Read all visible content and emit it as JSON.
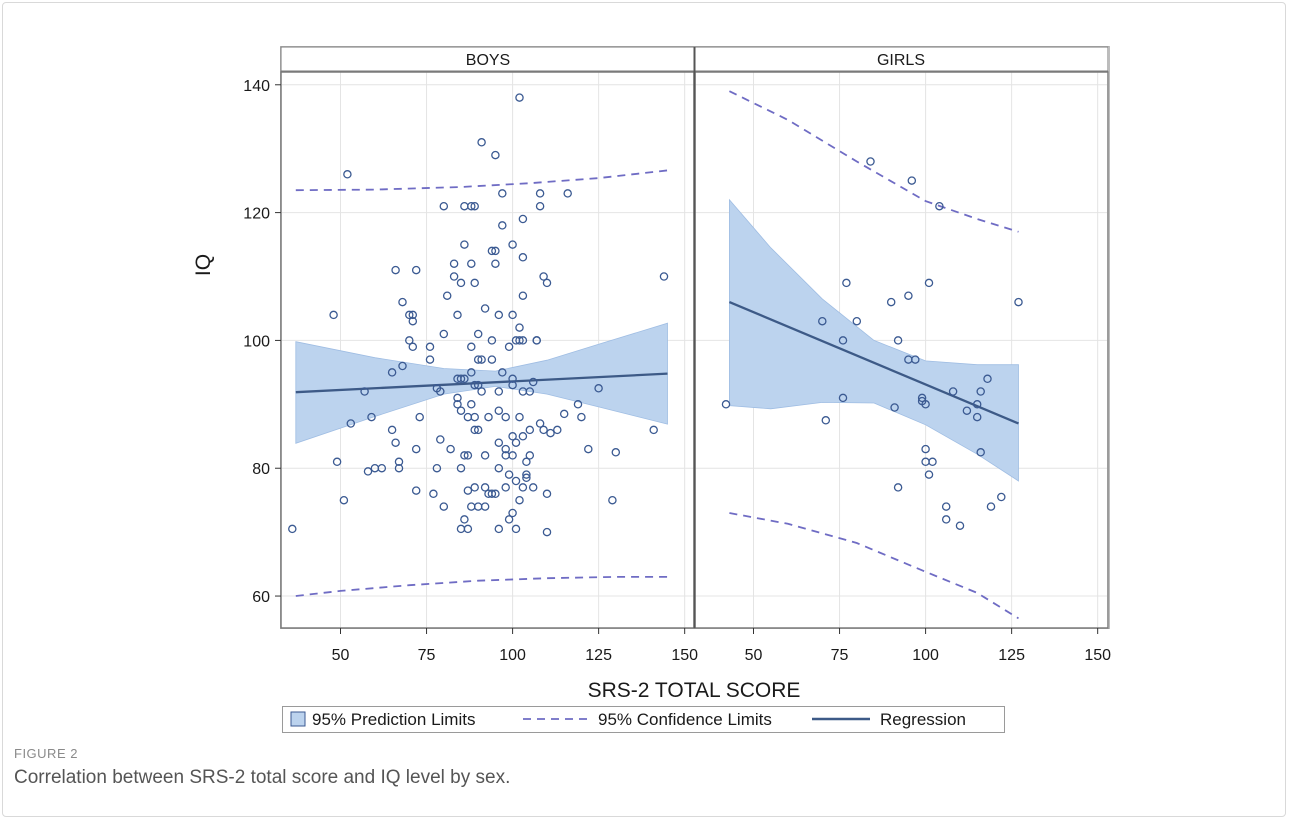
{
  "figure": {
    "label": "FIGURE 2",
    "caption": "Correlation between SRS-2 total score and IQ level by sex."
  },
  "chart_data": {
    "type": "scatter",
    "xlabel": "SRS-2 TOTAL SCORE",
    "ylabel": "IQ",
    "xlim": [
      33,
      153
    ],
    "ylim": [
      55,
      142
    ],
    "xticks": [
      50,
      75,
      100,
      125,
      150
    ],
    "yticks": [
      60,
      80,
      100,
      120,
      140
    ],
    "grid": true,
    "legend_position": "bottom",
    "legend": [
      {
        "key": "prediction",
        "label": "95% Prediction Limits"
      },
      {
        "key": "confidence",
        "label": "95% Confidence Limits"
      },
      {
        "key": "regression",
        "label": "Regression"
      }
    ],
    "colors": {
      "band": "#bcd3ee",
      "band_edge": "#9fbde3",
      "marker": "#3b5a92",
      "dashed": "#6f6cc4",
      "regression": "#3d5a87",
      "panel_border": "#7a7a7a",
      "grid": "#e4e4e4"
    },
    "panels": [
      {
        "name": "BOYS",
        "regression": [
          [
            37,
            91.9
          ],
          [
            145,
            94.8
          ]
        ],
        "band_upper": [
          [
            37,
            99.8
          ],
          [
            60,
            97.3
          ],
          [
            80,
            95.6
          ],
          [
            95,
            95.2
          ],
          [
            110,
            96.9
          ],
          [
            125,
            99.4
          ],
          [
            145,
            102.7
          ]
        ],
        "band_lower": [
          [
            37,
            83.9
          ],
          [
            60,
            88.1
          ],
          [
            80,
            91.6
          ],
          [
            95,
            92.8
          ],
          [
            110,
            91.6
          ],
          [
            125,
            89.6
          ],
          [
            145,
            86.9
          ]
        ],
        "confidence_upper": [
          [
            37,
            123.5
          ],
          [
            60,
            123.6
          ],
          [
            85,
            124.0
          ],
          [
            105,
            124.6
          ],
          [
            125,
            125.4
          ],
          [
            145,
            126.6
          ]
        ],
        "confidence_lower": [
          [
            37,
            60.0
          ],
          [
            50,
            60.8
          ],
          [
            70,
            61.7
          ],
          [
            90,
            62.4
          ],
          [
            110,
            62.8
          ],
          [
            130,
            63.0
          ],
          [
            145,
            63.0
          ]
        ],
        "points": [
          [
            36,
            70.5
          ],
          [
            48,
            104
          ],
          [
            49,
            81
          ],
          [
            51,
            75
          ],
          [
            52,
            126
          ],
          [
            53,
            87
          ],
          [
            57,
            92
          ],
          [
            58,
            79.5
          ],
          [
            59,
            88
          ],
          [
            60,
            80
          ],
          [
            62,
            80
          ],
          [
            65,
            95
          ],
          [
            65,
            86
          ],
          [
            66,
            111
          ],
          [
            66,
            84
          ],
          [
            67,
            81
          ],
          [
            67,
            80
          ],
          [
            68,
            96
          ],
          [
            68,
            106
          ],
          [
            70,
            100
          ],
          [
            70,
            104
          ],
          [
            71,
            104
          ],
          [
            71,
            103
          ],
          [
            71,
            99
          ],
          [
            72,
            111
          ],
          [
            72,
            83
          ],
          [
            72,
            76.5
          ],
          [
            73,
            88
          ],
          [
            76,
            99
          ],
          [
            76,
            97
          ],
          [
            77,
            76
          ],
          [
            78,
            92.5
          ],
          [
            78,
            80
          ],
          [
            79,
            92
          ],
          [
            79,
            84.5
          ],
          [
            80,
            74
          ],
          [
            80,
            101
          ],
          [
            80,
            121
          ],
          [
            81,
            107
          ],
          [
            82,
            83
          ],
          [
            83,
            110
          ],
          [
            83,
            112
          ],
          [
            84,
            90
          ],
          [
            84,
            104
          ],
          [
            84,
            94
          ],
          [
            84,
            91
          ],
          [
            85,
            94
          ],
          [
            85,
            89
          ],
          [
            85,
            80
          ],
          [
            85,
            70.5
          ],
          [
            85,
            109
          ],
          [
            86,
            94
          ],
          [
            86,
            82
          ],
          [
            86,
            115
          ],
          [
            86,
            72
          ],
          [
            86,
            121
          ],
          [
            87,
            88
          ],
          [
            87,
            70.5
          ],
          [
            87,
            82
          ],
          [
            87,
            76.5
          ],
          [
            88,
            74
          ],
          [
            88,
            95
          ],
          [
            88,
            90
          ],
          [
            88,
            99
          ],
          [
            88,
            112
          ],
          [
            88,
            121
          ],
          [
            89,
            121
          ],
          [
            89,
            109
          ],
          [
            89,
            93
          ],
          [
            89,
            88
          ],
          [
            89,
            86
          ],
          [
            89,
            77
          ],
          [
            90,
            97
          ],
          [
            90,
            101
          ],
          [
            90,
            74
          ],
          [
            90,
            93
          ],
          [
            90,
            86
          ],
          [
            91,
            131
          ],
          [
            91,
            97
          ],
          [
            91,
            92
          ],
          [
            92,
            105
          ],
          [
            92,
            82
          ],
          [
            92,
            77
          ],
          [
            92,
            74
          ],
          [
            93,
            88
          ],
          [
            93,
            76
          ],
          [
            94,
            76
          ],
          [
            94,
            114
          ],
          [
            94,
            100
          ],
          [
            94,
            97
          ],
          [
            95,
            129
          ],
          [
            95,
            114
          ],
          [
            95,
            112
          ],
          [
            95,
            76
          ],
          [
            96,
            104
          ],
          [
            96,
            92
          ],
          [
            96,
            89
          ],
          [
            96,
            84
          ],
          [
            96,
            80
          ],
          [
            96,
            70.5
          ],
          [
            97,
            123
          ],
          [
            97,
            118
          ],
          [
            97,
            95
          ],
          [
            98,
            88
          ],
          [
            98,
            82
          ],
          [
            98,
            77
          ],
          [
            98,
            83
          ],
          [
            99,
            99
          ],
          [
            99,
            79
          ],
          [
            99,
            72
          ],
          [
            100,
            115
          ],
          [
            100,
            104
          ],
          [
            100,
            94
          ],
          [
            100,
            93
          ],
          [
            100,
            85
          ],
          [
            100,
            82
          ],
          [
            100,
            73
          ],
          [
            101,
            100
          ],
          [
            101,
            84
          ],
          [
            101,
            78
          ],
          [
            101,
            70.5
          ],
          [
            102,
            138
          ],
          [
            102,
            102
          ],
          [
            102,
            100
          ],
          [
            102,
            88
          ],
          [
            102,
            75
          ],
          [
            103,
            119
          ],
          [
            103,
            113
          ],
          [
            103,
            107
          ],
          [
            103,
            100
          ],
          [
            103,
            92
          ],
          [
            103,
            85
          ],
          [
            103,
            77
          ],
          [
            104,
            79
          ],
          [
            104,
            78.5
          ],
          [
            104,
            81
          ],
          [
            105,
            82
          ],
          [
            105,
            86
          ],
          [
            105,
            92
          ],
          [
            106,
            93.5
          ],
          [
            106,
            77
          ],
          [
            107,
            100
          ],
          [
            107,
            100
          ],
          [
            108,
            121
          ],
          [
            108,
            123
          ],
          [
            108,
            87
          ],
          [
            109,
            110
          ],
          [
            109,
            86
          ],
          [
            110,
            109
          ],
          [
            110,
            76
          ],
          [
            110,
            70
          ],
          [
            111,
            85.5
          ],
          [
            113,
            86
          ],
          [
            115,
            88.5
          ],
          [
            116,
            123
          ],
          [
            119,
            90
          ],
          [
            120,
            88
          ],
          [
            122,
            83
          ],
          [
            125,
            92.5
          ],
          [
            129,
            75
          ],
          [
            130,
            82.5
          ],
          [
            141,
            86
          ],
          [
            144,
            110
          ]
        ]
      },
      {
        "name": "GIRLS",
        "regression": [
          [
            43,
            106
          ],
          [
            127,
            87
          ]
        ],
        "band_upper": [
          [
            43,
            122
          ],
          [
            55,
            114.5
          ],
          [
            70,
            106.5
          ],
          [
            85,
            100
          ],
          [
            100,
            96.8
          ],
          [
            115,
            96.2
          ],
          [
            127,
            96.2
          ]
        ],
        "band_lower": [
          [
            43,
            89.8
          ],
          [
            55,
            89.3
          ],
          [
            70,
            90.3
          ],
          [
            85,
            90.2
          ],
          [
            100,
            86.8
          ],
          [
            115,
            82.2
          ],
          [
            127,
            78
          ]
        ],
        "confidence_upper": [
          [
            43,
            139
          ],
          [
            60,
            134.5
          ],
          [
            80,
            128
          ],
          [
            100,
            121.8
          ],
          [
            115,
            119
          ],
          [
            127,
            117
          ]
        ],
        "confidence_lower": [
          [
            43,
            73
          ],
          [
            60,
            71.3
          ],
          [
            80,
            68.3
          ],
          [
            100,
            63.8
          ],
          [
            115,
            60.5
          ],
          [
            127,
            56.5
          ]
        ],
        "points": [
          [
            42,
            90
          ],
          [
            70,
            103
          ],
          [
            71,
            87.5
          ],
          [
            76,
            100
          ],
          [
            76,
            91
          ],
          [
            77,
            109
          ],
          [
            80,
            103
          ],
          [
            84,
            128
          ],
          [
            90,
            106
          ],
          [
            91,
            89.5
          ],
          [
            92,
            77
          ],
          [
            92,
            100
          ],
          [
            95,
            97
          ],
          [
            95,
            107
          ],
          [
            96,
            125
          ],
          [
            97,
            97
          ],
          [
            99,
            90.5
          ],
          [
            99,
            91
          ],
          [
            100,
            90
          ],
          [
            100,
            83
          ],
          [
            100,
            81
          ],
          [
            101,
            109
          ],
          [
            101,
            79
          ],
          [
            102,
            81
          ],
          [
            104,
            121
          ],
          [
            106,
            74
          ],
          [
            106,
            72
          ],
          [
            108,
            92
          ],
          [
            110,
            71
          ],
          [
            112,
            89
          ],
          [
            115,
            90
          ],
          [
            115,
            88
          ],
          [
            116,
            92
          ],
          [
            116,
            82.5
          ],
          [
            118,
            94
          ],
          [
            119,
            74
          ],
          [
            122,
            75.5
          ],
          [
            127,
            106
          ]
        ]
      }
    ]
  }
}
